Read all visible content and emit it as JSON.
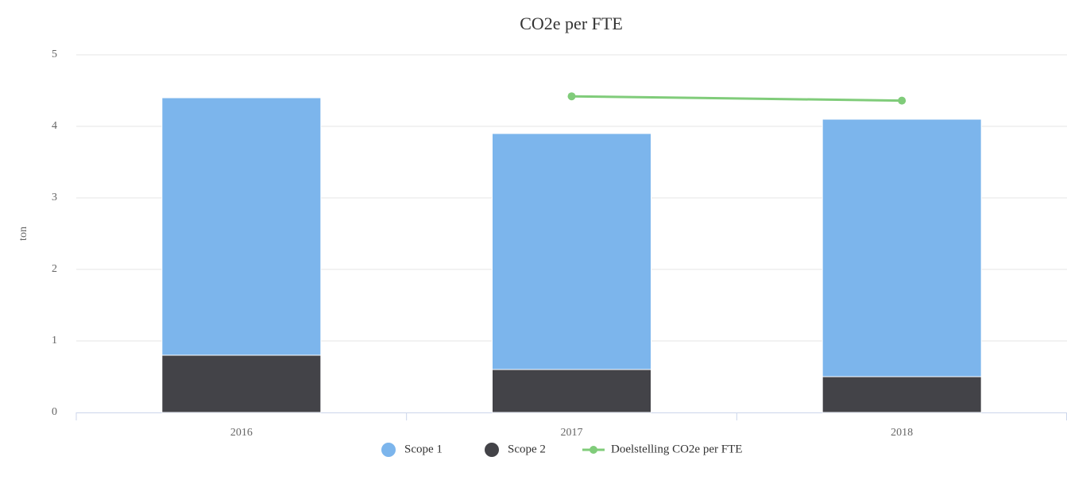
{
  "chart_data": {
    "type": "stacked_bar",
    "title": "CO2e per FTE",
    "y_label": "ton",
    "categories": [
      "2016",
      "2017",
      "2018"
    ],
    "series": [
      {
        "name": "Scope 1",
        "color": "#7cb5ec",
        "values": [
          3.6,
          3.3,
          3.6
        ]
      },
      {
        "name": "Scope 2",
        "color": "#434348",
        "values": [
          0.8,
          0.6,
          0.5
        ]
      },
      {
        "name": "Doelstelling CO2e per FTE",
        "type": "line",
        "color": "#80cc7a",
        "values": [
          null,
          4.42,
          4.36
        ]
      }
    ],
    "ylim": [
      0,
      5
    ],
    "yticks": [
      0,
      1,
      2,
      3,
      4,
      5
    ],
    "grid": true,
    "legend": "bottom"
  }
}
